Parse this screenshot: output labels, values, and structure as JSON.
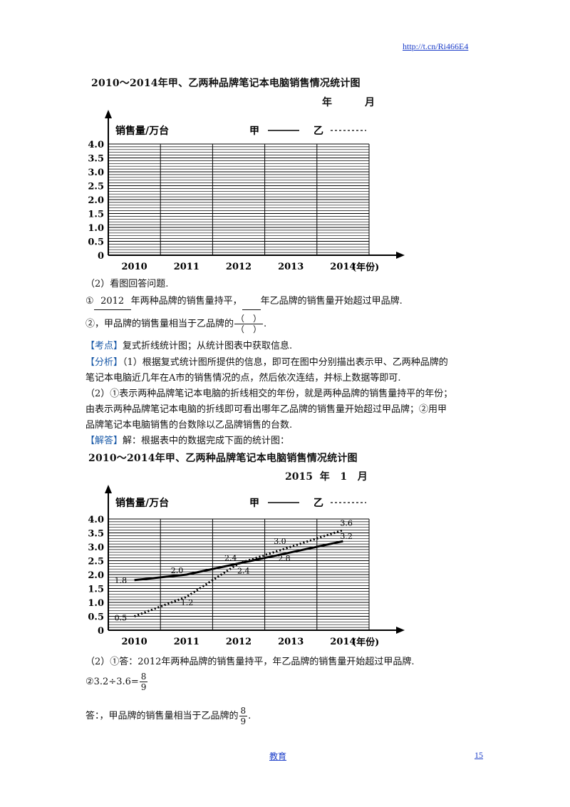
{
  "header": {
    "url": "http://t.cn/Ri466E4"
  },
  "blank_chart": {
    "title": "2010～2014年甲、乙两种品牌笔记本电脑销售情况统计图",
    "date_year_label": "年",
    "date_month_label": "月",
    "ylabel": "销售量/万台",
    "legend_jia": "甲",
    "legend_yi": "乙",
    "xlabel": "(年份)"
  },
  "question": {
    "heading": "（2）看图回答问题.",
    "line1_prefix": "①",
    "line1_blank1": "2012",
    "line1_middle": "年两种品牌的销售量持平，",
    "line1_suffix": "年乙品牌的销售量开始超过甲品牌.",
    "line2_prefix": "②，甲品牌的销售量相当于乙品牌的",
    "frac_paren": "（　）",
    "line2_suffix": "."
  },
  "analysis": {
    "kaodian_tag": "【考点】",
    "kaodian_text": "复式折线统计图；从统计图表中获取信息.",
    "fenxi_tag": "【分析】",
    "fenxi_line1": "（1）根据复式统计图所提供的信息，即可在图中分别描出表示甲、乙两种品牌的",
    "fenxi_line2": "笔记本电脑近几年在A市的销售情况的点，然后依次连结，并标上数据等即可.",
    "fenxi_line3": "（2）①表示两种品牌笔记本电脑的折线相交的年份，就是两种品牌的销售量持平的年份；",
    "fenxi_line4": "由表示两种品牌笔记本电脑的折线即可看出哪年乙品牌的销售量开始超过甲品牌；②用甲",
    "fenxi_line5": "品牌笔记本电脑销售的台数除以乙品牌销售的台数.",
    "jieda_tag": "【解答】",
    "jieda_text": "解：根据表中的数据完成下面的统计图："
  },
  "chart_data": {
    "type": "line",
    "title": "2010～2014年甲、乙两种品牌笔记本电脑销售情况统计图",
    "date_label": "2015 年 1 月",
    "date_year": "2015",
    "date_year_label": "年",
    "date_month": "1",
    "date_month_label": "月",
    "ylabel": "销售量/万台",
    "xlabel": "(年份)",
    "categories": [
      "2010",
      "2011",
      "2012",
      "2013",
      "2014"
    ],
    "yticks": [
      "0",
      "0.5",
      "1.0",
      "1.5",
      "2.0",
      "2.5",
      "3.0",
      "3.5",
      "4.0"
    ],
    "ylim": [
      0,
      4.0
    ],
    "grid": true,
    "legend_position": "top",
    "series": [
      {
        "name": "甲",
        "style": "solid",
        "values": [
          1.8,
          2.0,
          2.4,
          2.8,
          3.2
        ],
        "labels": [
          "1.8",
          "2.0",
          "2.4",
          "2.8",
          "3.2"
        ],
        "color": "#000000"
      },
      {
        "name": "乙",
        "style": "dotted",
        "values": [
          0.5,
          1.2,
          2.4,
          3.0,
          3.6
        ],
        "labels": [
          "0.5",
          "1.2",
          "2.4",
          "3.0",
          "3.6"
        ],
        "color": "#000000"
      }
    ]
  },
  "answer": {
    "line1": "（2）①答：2012年两种品牌的销售量持平，年乙品牌的销售量开始超过甲品牌.",
    "line2_prefix": "②3.2÷3.6=",
    "frac_num": "8",
    "frac_den": "9",
    "line3_prefix": "答：，甲品牌的销售量相当于乙品牌的",
    "line3_suffix": "."
  },
  "footer": {
    "center": "教育",
    "page": "15"
  }
}
